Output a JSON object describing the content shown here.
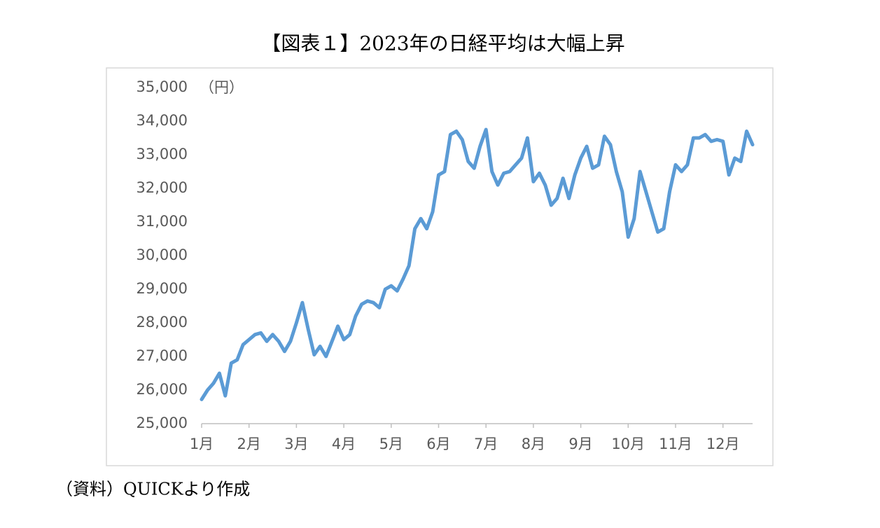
{
  "chart_data": {
    "type": "line",
    "title": "【図表１】2023年の日経平均は大幅上昇",
    "y_label": "（円）",
    "note": "（資料）QUICKより作成",
    "categories": [
      "1月",
      null,
      null,
      null,
      null,
      null,
      null,
      null,
      "2月",
      null,
      null,
      null,
      null,
      null,
      null,
      null,
      "3月",
      null,
      null,
      null,
      null,
      null,
      null,
      null,
      "4月",
      null,
      null,
      null,
      null,
      null,
      null,
      null,
      "5月",
      null,
      null,
      null,
      null,
      null,
      null,
      null,
      "6月",
      null,
      null,
      null,
      null,
      null,
      null,
      null,
      "7月",
      null,
      null,
      null,
      null,
      null,
      null,
      null,
      "8月",
      null,
      null,
      null,
      null,
      null,
      null,
      null,
      "9月",
      null,
      null,
      null,
      null,
      null,
      null,
      null,
      "10月",
      null,
      null,
      null,
      null,
      null,
      null,
      null,
      "11月",
      null,
      null,
      null,
      null,
      null,
      null,
      null,
      "12月",
      null,
      null,
      null,
      null,
      null
    ],
    "series": [
      {
        "name": "日経平均",
        "color": "#5b9bd5",
        "values": [
          25720,
          26000,
          26200,
          26500,
          25830,
          26800,
          26900,
          27350,
          27500,
          27650,
          27700,
          27450,
          27650,
          27450,
          27150,
          27450,
          28000,
          28600,
          27800,
          27050,
          27300,
          27000,
          27450,
          27900,
          27500,
          27650,
          28200,
          28550,
          28650,
          28600,
          28450,
          29000,
          29100,
          28950,
          29300,
          29700,
          30800,
          31100,
          30800,
          31300,
          32400,
          32500,
          33600,
          33700,
          33450,
          32800,
          32600,
          33250,
          33750,
          32500,
          32100,
          32450,
          32500,
          32700,
          32900,
          33500,
          32200,
          32450,
          32100,
          31500,
          31700,
          32300,
          31700,
          32400,
          32900,
          33250,
          32600,
          32700,
          33550,
          33300,
          32500,
          31900,
          30550,
          31100,
          32500,
          31900,
          31300,
          30700,
          30800,
          31900,
          32700,
          32500,
          32700,
          33500,
          33500,
          33600,
          33400,
          33450,
          33400,
          32400,
          32900,
          32800,
          33700,
          33300
        ]
      }
    ],
    "ylim": [
      25000,
      35000
    ],
    "yticks": [
      {
        "value": 25000,
        "label": "25,000"
      },
      {
        "value": 26000,
        "label": "26,000"
      },
      {
        "value": 27000,
        "label": "27,000"
      },
      {
        "value": 28000,
        "label": "28,000"
      },
      {
        "value": 29000,
        "label": "29,000"
      },
      {
        "value": 30000,
        "label": "30,000"
      },
      {
        "value": 31000,
        "label": "31,000"
      },
      {
        "value": 32000,
        "label": "32,000"
      },
      {
        "value": 33000,
        "label": "33,000"
      },
      {
        "value": 34000,
        "label": "34,000"
      },
      {
        "value": 35000,
        "label": "35,000"
      }
    ],
    "grid": false
  }
}
